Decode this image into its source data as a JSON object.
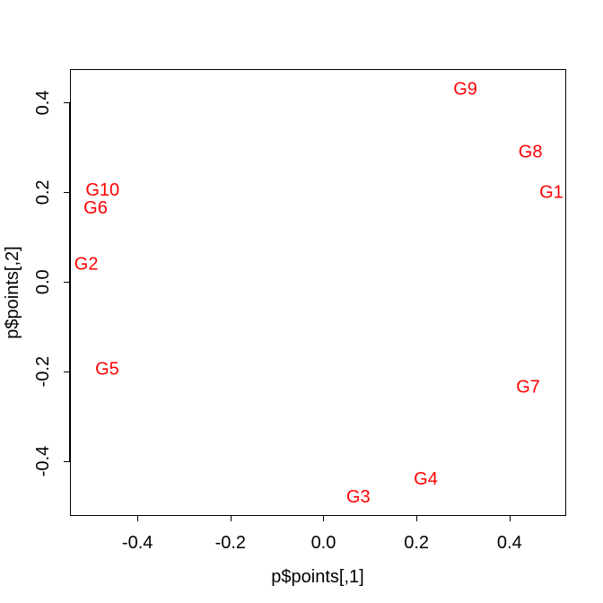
{
  "chart_data": {
    "type": "scatter",
    "title": "",
    "xlabel": "p$points[,1]",
    "ylabel": "p$points[,2]",
    "xlim": [
      -0.545,
      0.52
    ],
    "ylim": [
      -0.52,
      0.475
    ],
    "xticks": [
      -0.4,
      -0.2,
      0.0,
      0.2,
      0.4
    ],
    "xtick_labels": [
      "-0.4",
      "-0.2",
      "0.0",
      "0.2",
      "0.4"
    ],
    "yticks": [
      -0.4,
      -0.2,
      0.0,
      0.2,
      0.4
    ],
    "ytick_labels": [
      "-0.4",
      "-0.2",
      "0.0",
      "0.2",
      "0.4"
    ],
    "label_color": "#ff0000",
    "grid": false,
    "points": [
      {
        "label": "G1",
        "x": 0.49,
        "y": 0.2
      },
      {
        "label": "G2",
        "x": -0.51,
        "y": 0.04
      },
      {
        "label": "G3",
        "x": 0.075,
        "y": -0.48
      },
      {
        "label": "G4",
        "x": 0.22,
        "y": -0.44
      },
      {
        "label": "G5",
        "x": -0.465,
        "y": -0.195
      },
      {
        "label": "G6",
        "x": -0.49,
        "y": 0.165
      },
      {
        "label": "G7",
        "x": 0.44,
        "y": -0.235
      },
      {
        "label": "G8",
        "x": 0.445,
        "y": 0.29
      },
      {
        "label": "G9",
        "x": 0.305,
        "y": 0.43
      },
      {
        "label": "G10",
        "x": -0.475,
        "y": 0.205
      }
    ]
  }
}
